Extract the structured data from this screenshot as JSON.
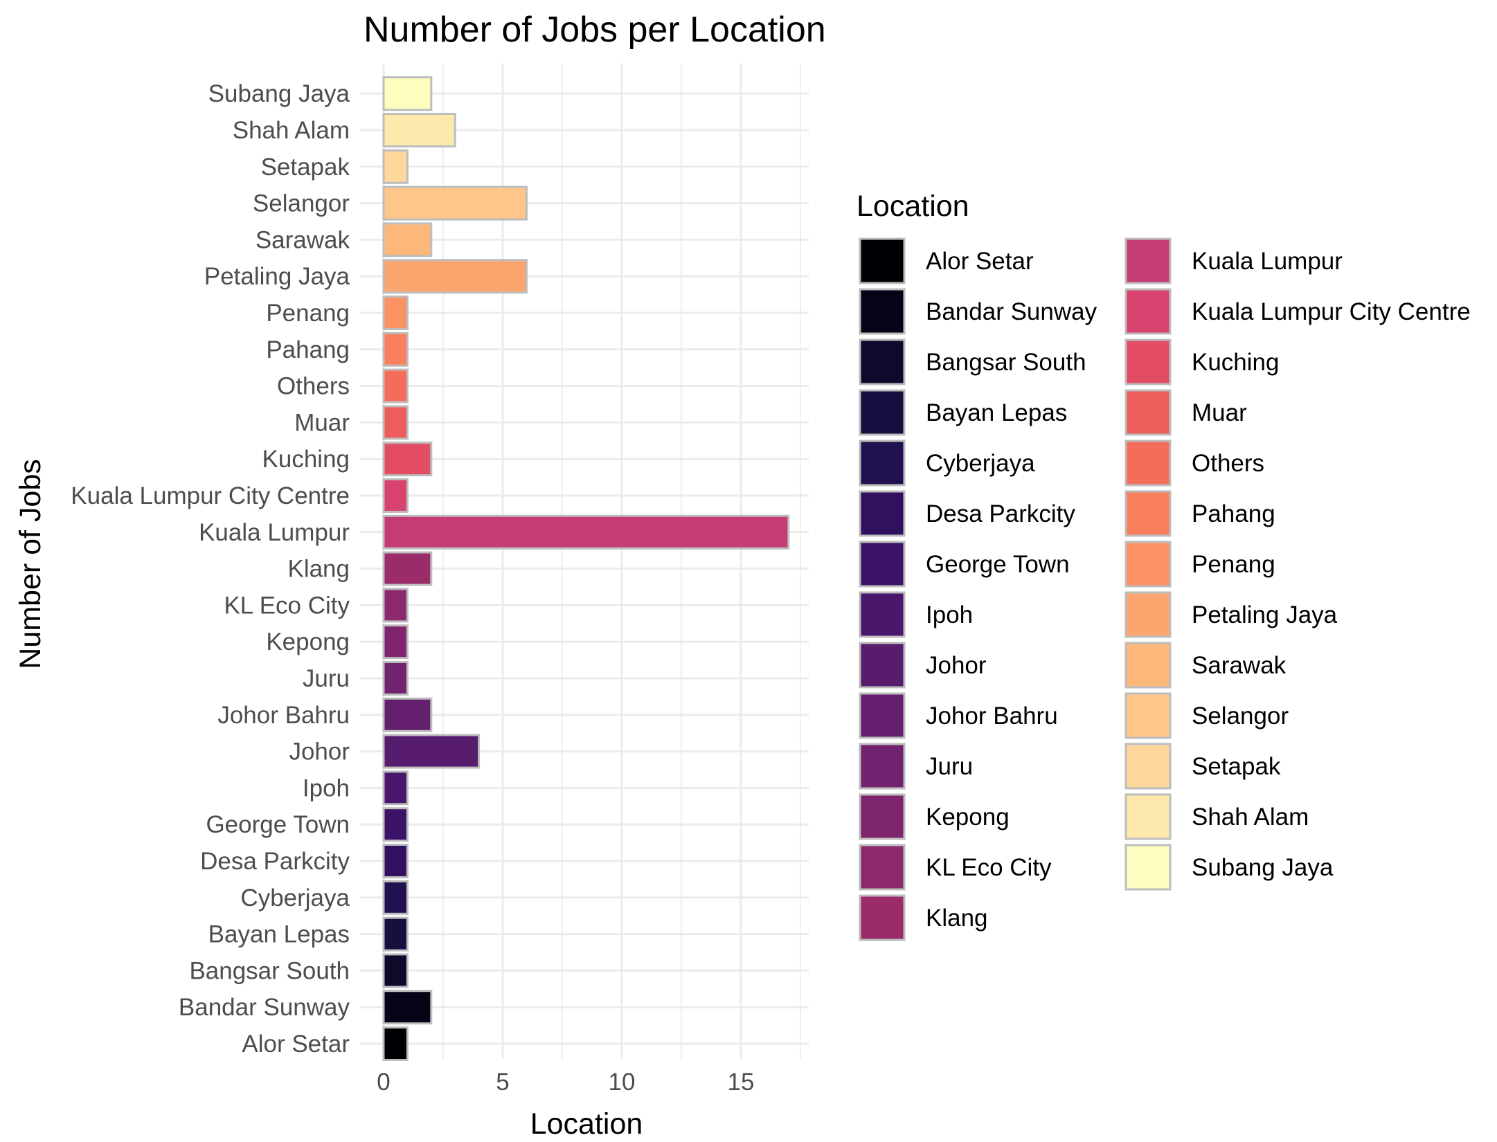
{
  "chart_data": {
    "type": "bar",
    "orientation": "horizontal",
    "title": "Number of Jobs per Location",
    "xlabel": "Location",
    "ylabel": "Number of Jobs",
    "xlim": [
      0,
      17.8
    ],
    "x_ticks": [
      0,
      5,
      10,
      15
    ],
    "grid": true,
    "legend_title": "Location",
    "legend_position": "right",
    "bar_border_color": "#bdbdbd",
    "categories": [
      "Alor Setar",
      "Bandar Sunway",
      "Bangsar South",
      "Bayan Lepas",
      "Cyberjaya",
      "Desa Parkcity",
      "George Town",
      "Ipoh",
      "Johor",
      "Johor Bahru",
      "Juru",
      "Kepong",
      "KL Eco City",
      "Klang",
      "Kuala Lumpur",
      "Kuala Lumpur City Centre",
      "Kuching",
      "Muar",
      "Others",
      "Pahang",
      "Penang",
      "Petaling Jaya",
      "Sarawak",
      "Selangor",
      "Setapak",
      "Shah Alam",
      "Subang Jaya"
    ],
    "values": [
      1,
      2,
      1,
      1,
      1,
      1,
      1,
      1,
      4,
      2,
      1,
      1,
      1,
      2,
      17,
      1,
      2,
      1,
      1,
      1,
      1,
      6,
      2,
      6,
      1,
      3,
      2
    ],
    "colors": [
      "#000004",
      "#050416",
      "#0d0a2c",
      "#170f3f",
      "#221150",
      "#30115f",
      "#3d1367",
      "#4a176d",
      "#571c6e",
      "#641f6f",
      "#71236f",
      "#7e256e",
      "#8c296c",
      "#9a2c6a",
      "#c43c73",
      "#d7436e",
      "#e24d64",
      "#ec5d5c",
      "#f36d5a",
      "#f8805c",
      "#fb9263",
      "#fca56e",
      "#feb77b",
      "#fec688",
      "#fed79c",
      "#fee9ad",
      "#fcfdbf"
    ]
  }
}
